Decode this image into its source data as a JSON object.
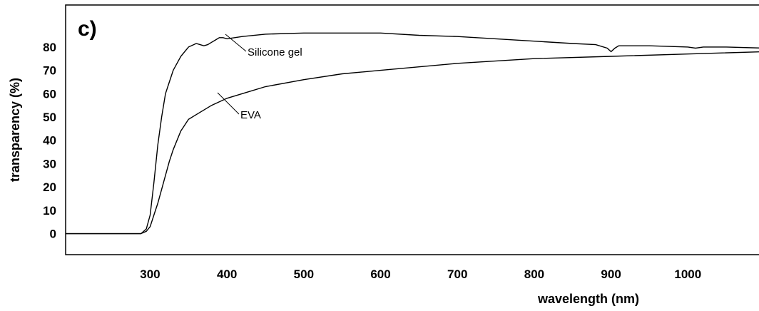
{
  "chart_data": {
    "type": "line",
    "panel_label": "c)",
    "xlabel": "wavelength  (nm)",
    "ylabel": "transparency  (%)",
    "xlim": [
      190,
      1100
    ],
    "ylim": [
      -9,
      98
    ],
    "xticks": [
      300,
      400,
      500,
      600,
      700,
      800,
      900,
      1000
    ],
    "yticks": [
      0,
      10,
      20,
      30,
      40,
      50,
      60,
      70,
      80
    ],
    "grid": false,
    "legend": "none",
    "series": [
      {
        "name": "Silicone gel",
        "color": "#000000",
        "x": [
          190,
          250,
          288,
          295,
          300,
          305,
          310,
          315,
          320,
          325,
          330,
          340,
          350,
          360,
          365,
          370,
          375,
          380,
          385,
          390,
          395,
          400,
          420,
          450,
          500,
          550,
          600,
          650,
          700,
          750,
          800,
          850,
          880,
          895,
          900,
          905,
          910,
          950,
          1000,
          1010,
          1020,
          1050,
          1100
        ],
        "y": [
          0,
          0,
          0,
          2,
          8,
          22,
          38,
          50,
          60,
          65,
          70,
          76,
          80,
          81.5,
          81,
          80.5,
          81,
          82,
          83,
          84,
          84,
          83.5,
          84.5,
          85.5,
          86,
          86,
          86,
          85,
          84.5,
          83.5,
          82.5,
          81.5,
          81,
          79.5,
          78,
          79.5,
          80.5,
          80.5,
          80,
          79.5,
          80,
          80,
          79.5
        ]
      },
      {
        "name": "EVA",
        "color": "#000000",
        "x": [
          190,
          250,
          288,
          295,
          300,
          305,
          310,
          315,
          320,
          325,
          330,
          340,
          350,
          360,
          380,
          400,
          450,
          500,
          550,
          600,
          700,
          800,
          900,
          1000,
          1100
        ],
        "y": [
          0,
          0,
          0,
          1,
          3,
          8,
          13,
          19,
          25,
          31,
          36,
          44,
          49,
          51,
          55,
          58,
          63,
          66,
          68.5,
          70,
          73,
          75,
          76,
          77,
          78
        ]
      }
    ],
    "annotations": [
      {
        "text": "Silicone gel",
        "series": "Silicone gel"
      },
      {
        "text": "EVA",
        "series": "EVA"
      }
    ]
  }
}
